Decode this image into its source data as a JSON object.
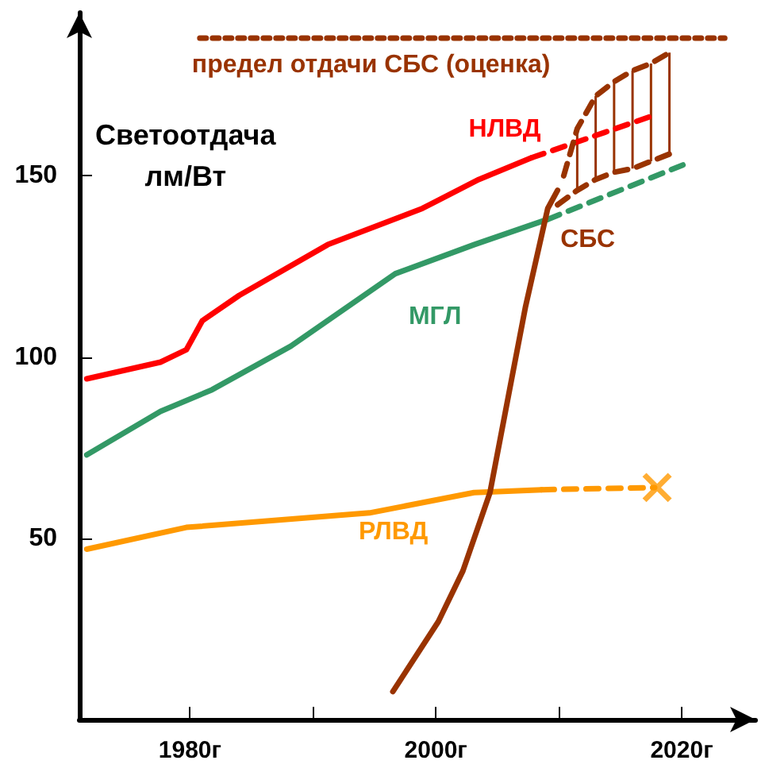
{
  "chart_data": {
    "type": "line",
    "ylabel": "Светоотдача лм/Вт",
    "xlim": [
      1971,
      2026
    ],
    "xticks": [
      {
        "value": 1980,
        "label": "1980г"
      },
      {
        "value": 1990,
        "label": null
      },
      {
        "value": 2000,
        "label": "2000г"
      },
      {
        "value": 2010,
        "label": null
      },
      {
        "value": 2020,
        "label": "2020г"
      }
    ],
    "ylim": [
      0,
      195
    ],
    "yticks": [
      50,
      100,
      150
    ],
    "grid": false,
    "legend": false,
    "marker": "none",
    "series": [
      {
        "name": "предел отдачи СБС (оценка)",
        "color": "#993300",
        "line_style": "dotted",
        "x": [
          1980.8,
          2023.5
        ],
        "values": [
          188,
          188
        ]
      },
      {
        "name": "НЛВД",
        "color": "#ff0000",
        "line_style": "solid",
        "x": [
          1971.6,
          1977.6,
          1979.7,
          1981,
          1984,
          1991.2,
          1998.9,
          2003.5,
          2007.8
        ],
        "values": [
          94,
          98.6,
          102,
          110,
          117,
          131,
          141,
          149,
          155
        ]
      },
      {
        "color": "#ff0000",
        "line_style": "dashed",
        "x": [
          2007.8,
          2018
        ],
        "values": [
          155,
          167
        ]
      },
      {
        "name": "МГЛ",
        "color": "#339966",
        "line_style": "solid",
        "x": [
          1971.6,
          1977.6,
          1981.8,
          1988.2,
          1996.7,
          2003.1,
          2009.1
        ],
        "values": [
          73,
          85,
          91,
          103,
          123,
          131,
          138
        ]
      },
      {
        "color": "#339966",
        "line_style": "dashed",
        "x": [
          2009.1,
          2020.1
        ],
        "values": [
          138,
          153
        ]
      },
      {
        "name": "РЛВД",
        "color": "#ff9900",
        "line_style": "solid",
        "x": [
          1971.6,
          1979.7,
          1994.6,
          2003.1,
          2008.6
        ],
        "values": [
          47,
          53,
          57,
          62.6,
          63.4
        ]
      },
      {
        "color": "#ff9900",
        "line_style": "dashed",
        "x": [
          2008.6,
          2017.8
        ],
        "values": [
          63.4,
          64
        ]
      },
      {
        "type": "scatter",
        "color": "#ff9900",
        "marker": "cross",
        "x": [
          2018
        ],
        "values": [
          64
        ]
      },
      {
        "name": "СБС",
        "color": "#993300",
        "line_style": "solid",
        "x": [
          1996.5,
          2000.2,
          2002.2,
          2004.4,
          2006,
          2007.3,
          2009.1,
          2009.9
        ],
        "values": [
          7.7,
          27,
          41,
          62.6,
          91,
          114,
          141,
          146
        ]
      },
      {
        "color": "#993300",
        "line_style": "dashed",
        "x": [
          2010.4,
          2011.5,
          2013,
          2014.5,
          2016,
          2017.5,
          2019
        ],
        "values": [
          150,
          163,
          172,
          176,
          179,
          181,
          184
        ],
        "errors": [
          null,
          [
            146,
            163
          ],
          [
            149,
            172
          ],
          [
            151,
            176
          ],
          [
            152,
            179
          ],
          [
            154,
            181
          ],
          [
            156,
            184
          ]
        ]
      },
      {
        "color": "#993300",
        "line_style": "dashed",
        "x": [
          2009.9,
          2011.5,
          2013,
          2014.5,
          2016,
          2017.5,
          2019
        ],
        "values": [
          142,
          146,
          149,
          151,
          152,
          154,
          156
        ]
      }
    ]
  }
}
